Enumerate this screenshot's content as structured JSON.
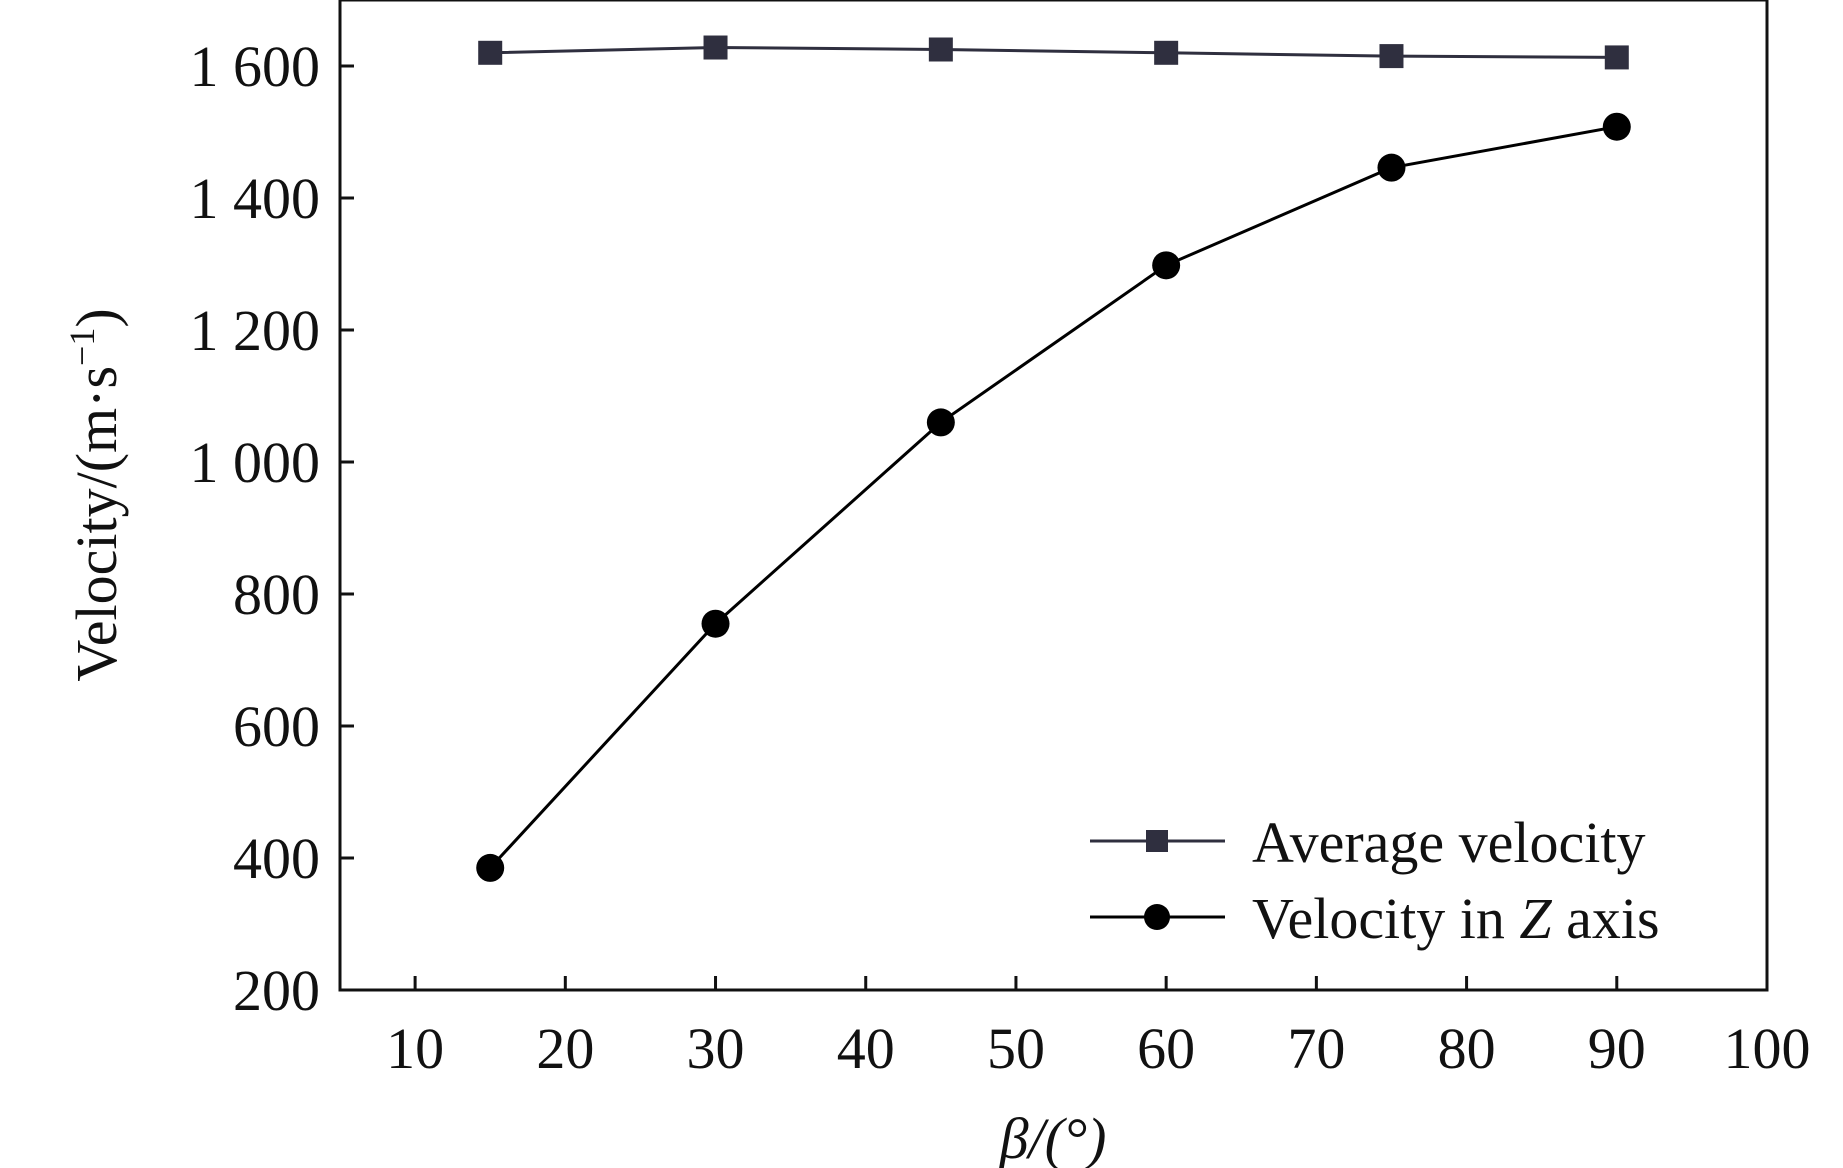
{
  "chart_data": {
    "type": "line",
    "title": "",
    "xlabel": "β/(°)",
    "ylabel_main": "Velocity/(m·s",
    "ylabel_sup": "−1",
    "ylabel_close": ")",
    "xlim": [
      5,
      100
    ],
    "ylim": [
      200,
      1700
    ],
    "xticks": [
      10,
      20,
      30,
      40,
      50,
      60,
      70,
      80,
      90,
      100
    ],
    "xtick_labels": [
      "10",
      "20",
      "30",
      "40",
      "50",
      "60",
      "70",
      "80",
      "90",
      "100"
    ],
    "yticks": [
      200,
      400,
      600,
      800,
      1000,
      1200,
      1400,
      1600
    ],
    "ytick_labels": [
      "200",
      "400",
      "600",
      "800",
      "1 000",
      "1 200",
      "1 400",
      "1 600"
    ],
    "x": [
      15,
      30,
      45,
      60,
      75,
      90
    ],
    "series": [
      {
        "name": "Average velocity",
        "marker": "square",
        "color": "#2f2f3f",
        "values": [
          1620,
          1628,
          1625,
          1620,
          1615,
          1613
        ]
      },
      {
        "name": "Velocity in Z axis",
        "name_prefix": "Velocity in ",
        "name_italic": "Z",
        "name_suffix": " axis",
        "marker": "circle",
        "color": "#000000",
        "values": [
          385,
          755,
          1060,
          1298,
          1446,
          1508
        ]
      }
    ],
    "legend_position": "bottom-right",
    "grid": false
  }
}
